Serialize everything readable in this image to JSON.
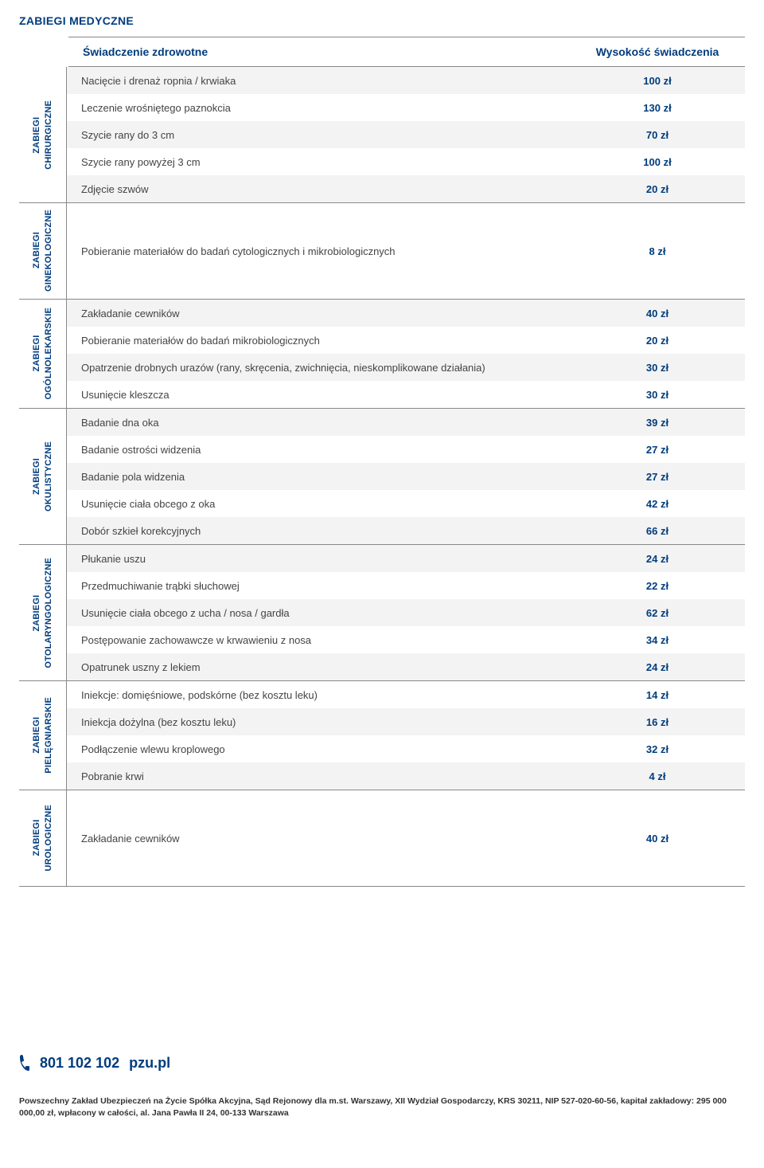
{
  "title": "ZABIEGI MEDYCZNE",
  "header": {
    "service": "Świadczenie zdrowotne",
    "amount": "Wysokość świadczenia"
  },
  "colors": {
    "brand": "#003c7d",
    "stripe": "#f3f3f3",
    "text": "#444444",
    "border": "#888888",
    "background": "#ffffff"
  },
  "sections": [
    {
      "label": "ZABIEGI\nCHIRURGICZNE",
      "rows": [
        {
          "service": "Nacięcie i drenaż ropnia / krwiaka",
          "amount": "100 zł",
          "stripe": true
        },
        {
          "service": "Leczenie wrośniętego paznokcia",
          "amount": "130 zł",
          "stripe": false
        },
        {
          "service": "Szycie rany do 3 cm",
          "amount": "70 zł",
          "stripe": true
        },
        {
          "service": "Szycie rany powyżej 3 cm",
          "amount": "100 zł",
          "stripe": false
        },
        {
          "service": "Zdjęcie szwów",
          "amount": "20 zł",
          "stripe": true
        }
      ]
    },
    {
      "label": "ZABIEGI\nGINEKOLOGICZNE",
      "rows": [
        {
          "service": "Pobieranie materiałów do badań cytologicznych i mikrobiologicznych",
          "amount": "8 zł",
          "stripe": false,
          "tall": true
        }
      ]
    },
    {
      "label": "ZABIEGI\nOGÓLNOLEKARSKIE",
      "rows": [
        {
          "service": "Zakładanie cewników",
          "amount": "40 zł",
          "stripe": true
        },
        {
          "service": "Pobieranie materiałów do badań mikrobiologicznych",
          "amount": "20 zł",
          "stripe": false
        },
        {
          "service": "Opatrzenie drobnych urazów (rany, skręcenia, zwichnięcia, nieskomplikowane działania)",
          "amount": "30 zł",
          "stripe": true
        },
        {
          "service": "Usunięcie kleszcza",
          "amount": "30 zł",
          "stripe": false
        }
      ]
    },
    {
      "label": "ZABIEGI\nOKULISTYCZNE",
      "rows": [
        {
          "service": "Badanie dna oka",
          "amount": "39 zł",
          "stripe": true
        },
        {
          "service": "Badanie ostrości widzenia",
          "amount": "27 zł",
          "stripe": false
        },
        {
          "service": "Badanie pola widzenia",
          "amount": "27 zł",
          "stripe": true
        },
        {
          "service": "Usunięcie ciała obcego z oka",
          "amount": "42 zł",
          "stripe": false
        },
        {
          "service": "Dobór szkieł korekcyjnych",
          "amount": "66 zł",
          "stripe": true
        }
      ]
    },
    {
      "label": "ZABIEGI\nOTOLARYNGOLOGICZNE",
      "rows": [
        {
          "service": "Płukanie uszu",
          "amount": "24 zł",
          "stripe": true
        },
        {
          "service": "Przedmuchiwanie trąbki słuchowej",
          "amount": "22 zł",
          "stripe": false
        },
        {
          "service": "Usunięcie ciała obcego z ucha / nosa / gardła",
          "amount": "62 zł",
          "stripe": true
        },
        {
          "service": "Postępowanie zachowawcze w krwawieniu z nosa",
          "amount": "34 zł",
          "stripe": false
        },
        {
          "service": "Opatrunek uszny z lekiem",
          "amount": "24 zł",
          "stripe": true
        }
      ]
    },
    {
      "label": "ZABIEGI\nPIELĘGNIARSKIE",
      "rows": [
        {
          "service": "Iniekcje: domięśniowe, podskórne (bez kosztu leku)",
          "amount": "14 zł",
          "stripe": false
        },
        {
          "service": "Iniekcja dożylna (bez kosztu leku)",
          "amount": "16 zł",
          "stripe": true
        },
        {
          "service": "Podłączenie wlewu kroplowego",
          "amount": "32 zł",
          "stripe": false
        },
        {
          "service": "Pobranie krwi",
          "amount": "4 zł",
          "stripe": true
        }
      ]
    },
    {
      "label": "ZABIEGI\nUROLOGICZNE",
      "rows": [
        {
          "service": "Zakładanie cewników",
          "amount": "40 zł",
          "stripe": false,
          "tall": true
        }
      ]
    }
  ],
  "footer": {
    "phone": "801 102 102",
    "site": "pzu.pl",
    "legal": "Powszechny Zakład Ubezpieczeń na Życie Spółka Akcyjna, Sąd Rejonowy dla m.st. Warszawy, XII Wydział Gospodarczy, KRS 30211, NIP 527-020-60-56,\nkapitał zakładowy: 295 000 000,00 zł, wpłacony w całości, al. Jana Pawła II 24, 00-133 Warszawa"
  }
}
